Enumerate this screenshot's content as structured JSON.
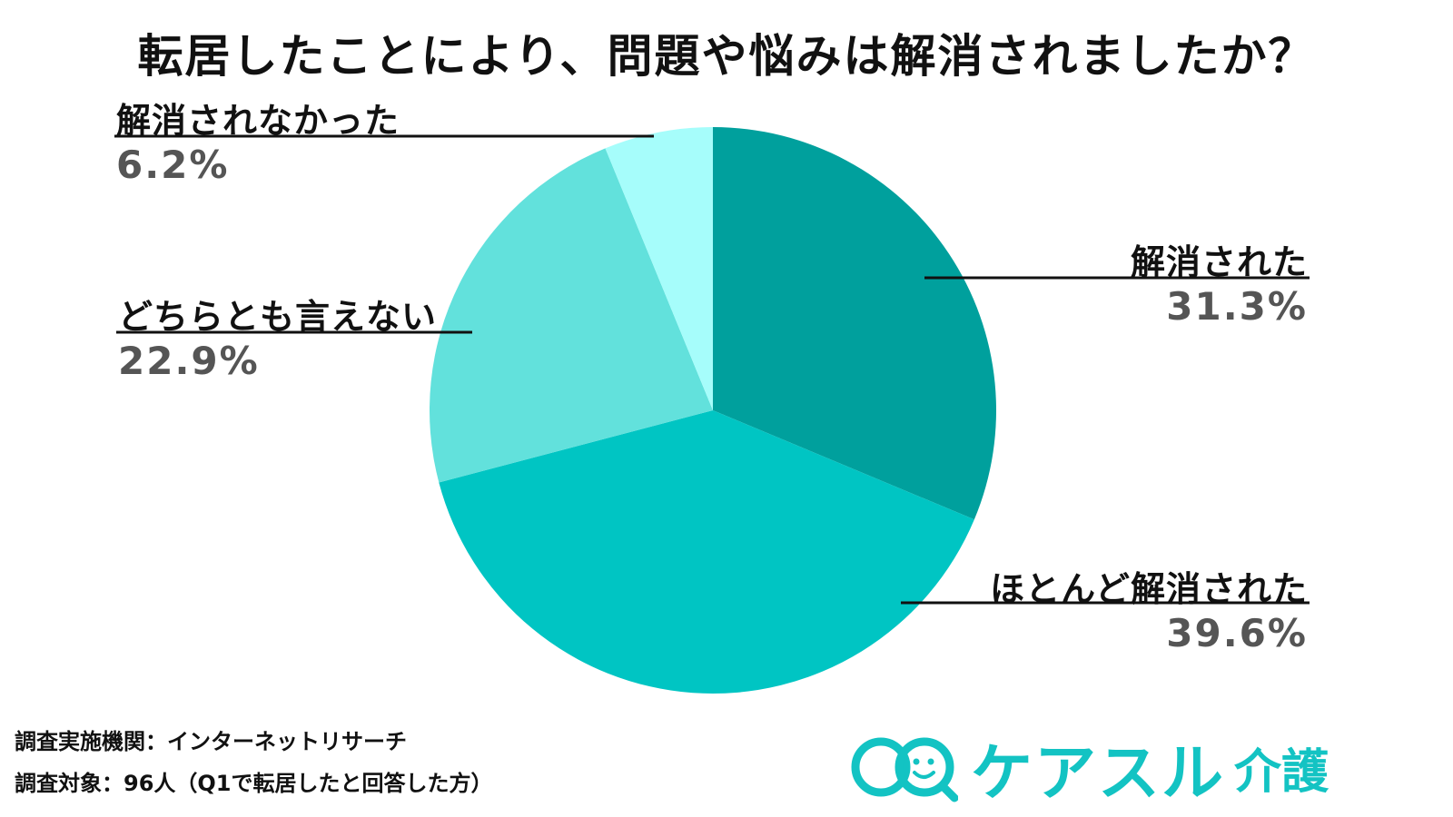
{
  "chart_data": {
    "type": "pie",
    "title": "転居したことにより、問題や悩みは解消されましたか？",
    "slices": [
      {
        "label": "解消された",
        "value": 31.3,
        "display": "31.3%",
        "color": "#00a09d"
      },
      {
        "label": "ほとんど解消された",
        "value": 39.6,
        "display": "39.6%",
        "color": "#00c5c3"
      },
      {
        "label": "どちらとも言えない",
        "value": 22.9,
        "display": "22.9%",
        "color": "#62e1dc"
      },
      {
        "label": "解消されなかった",
        "value": 6.2,
        "display": "6.2%",
        "color": "#a6fdfb"
      }
    ],
    "start_angle": "12 o'clock",
    "direction": "clockwise"
  },
  "footer": {
    "line1": "調査実施機関：インターネットリサーチ",
    "line2": "調査対象：96人（Q1で転居したと回答した方）"
  },
  "logo": {
    "text": "ケアスル",
    "sub": "介護",
    "color": "#13c3c3"
  }
}
